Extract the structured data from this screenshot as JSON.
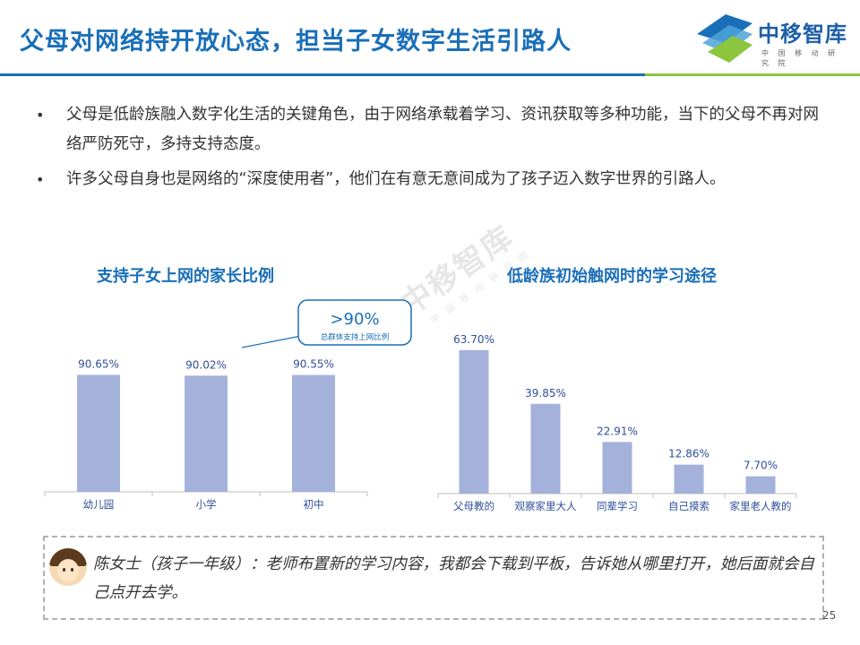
{
  "header": {
    "title": "父母对网络持开放心态，担当子女数字生活引路人",
    "logo_text": "中移智库",
    "logo_subtext": "中 国 移 动 研 究 院",
    "colors": {
      "primary": "#1a6fb8",
      "accent": "#8cc63f",
      "bar": "#a4b2db",
      "label": "#2f4f99"
    }
  },
  "bullets": [
    "父母是低龄族融入数字化生活的关键角色，由于网络承载着学习、资讯获取等多种功能，当下的父母不再对网络严防死守，多持支持态度。",
    "许多父母自身也是网络的“深度使用者”，他们在有意无意间成为了孩子迈入数字世界的引路人。"
  ],
  "watermark": {
    "big": "中移智库",
    "small": "中国移动研究院"
  },
  "callout": {
    "value": ">90%",
    "note": "总群体支持上网比例"
  },
  "quote": {
    "text": "陈女士（孩子一年级）：老师布置新的学习内容，我都会下载到平板，告诉她从哪里打开，她后面就会自己点开去学。",
    "avatar": "woman-avatar-icon"
  },
  "page_number": "25",
  "chart_data": [
    {
      "type": "bar",
      "title": "支持子女上网的家长比例",
      "categories": [
        "幼儿园",
        "小学",
        "初中"
      ],
      "values": [
        90.65,
        90.02,
        90.55
      ],
      "value_labels": [
        "90.65%",
        "90.02%",
        "90.55%"
      ],
      "ylim": [
        0,
        100
      ],
      "grid": false
    },
    {
      "type": "bar",
      "title": "低龄族初始触网时的学习途径",
      "categories": [
        "父母教的",
        "观察家里大人",
        "同辈学习",
        "自己摸索",
        "家里老人教的"
      ],
      "values": [
        63.7,
        39.85,
        22.91,
        12.86,
        7.7
      ],
      "value_labels": [
        "63.70%",
        "39.85%",
        "22.91%",
        "12.86%",
        "7.70%"
      ],
      "ylim": [
        0,
        70
      ],
      "grid": false
    }
  ]
}
